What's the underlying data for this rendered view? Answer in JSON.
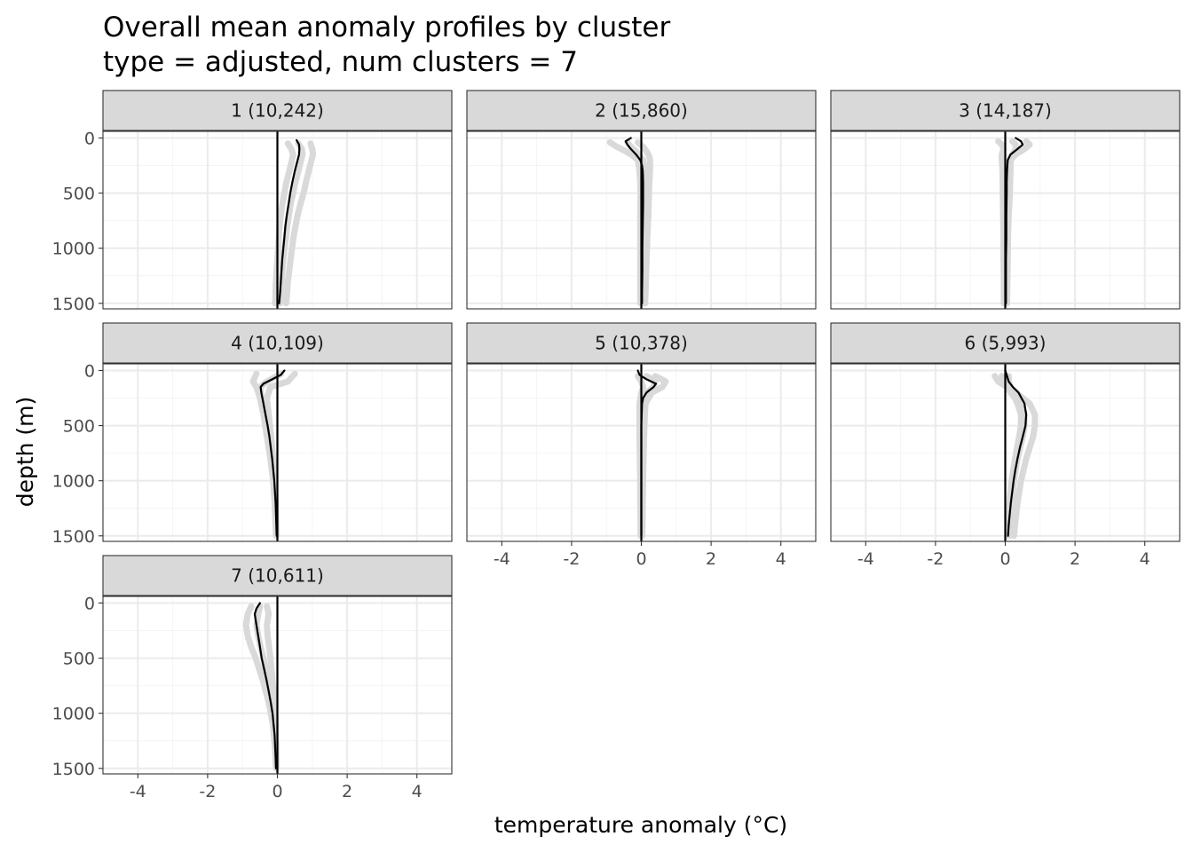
{
  "chart_data": {
    "type": "line",
    "title": "Overall mean anomaly profiles by cluster",
    "subtitle": "type = adjusted, num clusters = 7",
    "xlabel": "temperature anomaly (°C)",
    "ylabel": "depth (m)",
    "xlim": [
      -5,
      5
    ],
    "ylim": [
      1550,
      -60
    ],
    "y_reversed": true,
    "x_ticks": [
      -4,
      -2,
      0,
      2,
      4
    ],
    "y_ticks": [
      0,
      500,
      1000,
      1500
    ],
    "grid": true,
    "layout": "facet_wrap",
    "zero_line": 0,
    "panels": [
      {
        "label": "1 (10,242)",
        "series": [
          {
            "depth": [
              50,
              100,
              150,
              200,
              300,
              400,
              500,
              600,
              700,
              800,
              900,
              1000,
              1100,
              1200,
              1300,
              1400,
              1500
            ],
            "values": [
              0.6,
              0.7,
              0.72,
              0.68,
              0.6,
              0.52,
              0.45,
              0.38,
              0.33,
              0.28,
              0.25,
              0.2,
              0.17,
              0.14,
              0.12,
              0.1,
              0.08
            ]
          },
          {
            "depth": [
              50,
              100,
              150,
              200,
              300,
              400,
              500,
              600,
              700,
              800,
              900,
              1000,
              1100,
              1200,
              1300,
              1400,
              1500
            ],
            "values": [
              0.95,
              1.0,
              1.02,
              0.98,
              0.9,
              0.82,
              0.75,
              0.66,
              0.58,
              0.52,
              0.46,
              0.42,
              0.38,
              0.34,
              0.3,
              0.28,
              0.25
            ]
          },
          {
            "depth": [
              50,
              100,
              150,
              200,
              300,
              400,
              500,
              600,
              700,
              800,
              900,
              1000,
              1100,
              1200,
              1300,
              1400,
              1500
            ],
            "values": [
              0.3,
              0.4,
              0.45,
              0.42,
              0.34,
              0.26,
              0.2,
              0.14,
              0.1,
              0.06,
              0.04,
              0.02,
              0.0,
              -0.02,
              -0.04,
              -0.05,
              -0.06
            ]
          },
          {
            "depth": [
              20,
              60,
              100,
              150,
              200,
              300,
              400,
              500,
              600,
              700,
              800,
              900,
              1000,
              1100,
              1200,
              1300,
              1400,
              1500
            ],
            "values": [
              0.55,
              0.62,
              0.63,
              0.62,
              0.58,
              0.5,
              0.43,
              0.37,
              0.32,
              0.27,
              0.23,
              0.2,
              0.17,
              0.14,
              0.12,
              0.1,
              0.08,
              0.05
            ]
          }
        ]
      },
      {
        "label": "2 (15,860)",
        "series": [
          {
            "depth": [
              40,
              80,
              120,
              160,
              200,
              300,
              400,
              500,
              700,
              900,
              1100,
              1300,
              1500
            ],
            "values": [
              -0.4,
              -0.3,
              -0.15,
              -0.05,
              0.05,
              0.1,
              0.12,
              0.12,
              0.1,
              0.08,
              0.06,
              0.05,
              0.04
            ]
          },
          {
            "depth": [
              40,
              80,
              120,
              160,
              200,
              300,
              400,
              500,
              700,
              900,
              1100,
              1300,
              1500
            ],
            "values": [
              -0.9,
              -0.7,
              -0.45,
              -0.25,
              -0.1,
              -0.05,
              -0.03,
              -0.02,
              -0.03,
              -0.03,
              -0.03,
              -0.03,
              -0.03
            ]
          },
          {
            "depth": [
              40,
              80,
              120,
              160,
              200,
              300,
              400,
              500,
              700,
              900,
              1100,
              1300,
              1500
            ],
            "values": [
              -0.1,
              0.05,
              0.15,
              0.22,
              0.25,
              0.25,
              0.23,
              0.22,
              0.2,
              0.17,
              0.15,
              0.13,
              0.11
            ]
          },
          {
            "depth": [
              0,
              30,
              60,
              100,
              150,
              200,
              250,
              300,
              400,
              500,
              600,
              800,
              1000,
              1200,
              1400,
              1500
            ],
            "values": [
              -0.3,
              -0.45,
              -0.4,
              -0.3,
              -0.15,
              -0.03,
              0.02,
              0.04,
              0.05,
              0.05,
              0.05,
              0.04,
              0.03,
              0.03,
              0.02,
              0.02
            ]
          }
        ]
      },
      {
        "label": "3 (14,187)",
        "series": [
          {
            "depth": [
              30,
              60,
              100,
              150,
              200,
              300,
              500,
              700,
              900,
              1100,
              1300,
              1500
            ],
            "values": [
              0.6,
              0.7,
              0.55,
              0.3,
              0.15,
              0.12,
              0.1,
              0.08,
              0.06,
              0.05,
              0.04,
              0.03
            ]
          },
          {
            "depth": [
              30,
              60,
              100,
              150,
              200,
              300,
              500,
              700,
              900,
              1100,
              1300,
              1500
            ],
            "values": [
              -0.2,
              -0.1,
              -0.05,
              -0.1,
              -0.1,
              -0.08,
              -0.07,
              -0.06,
              -0.05,
              -0.05,
              -0.04,
              -0.04
            ]
          },
          {
            "depth": [
              30,
              60,
              100,
              150,
              200,
              300,
              500,
              700,
              900,
              1100,
              1300,
              1500
            ],
            "values": [
              0.2,
              0.3,
              0.3,
              0.2,
              0.15,
              0.15,
              0.13,
              0.1,
              0.08,
              0.07,
              0.06,
              0.05
            ]
          },
          {
            "depth": [
              0,
              30,
              60,
              100,
              150,
              200,
              300,
              400,
              500,
              700,
              900,
              1100,
              1300,
              1500
            ],
            "values": [
              0.3,
              0.45,
              0.5,
              0.35,
              0.15,
              0.07,
              0.05,
              0.04,
              0.04,
              0.03,
              0.03,
              0.02,
              0.02,
              0.02
            ]
          }
        ]
      },
      {
        "label": "4 (10,109)",
        "series": [
          {
            "depth": [
              30,
              100,
              150,
              250,
              400,
              600,
              800,
              1000,
              1200,
              1400,
              1500
            ],
            "values": [
              -0.6,
              -0.7,
              -0.6,
              -0.5,
              -0.4,
              -0.3,
              -0.2,
              -0.12,
              -0.08,
              -0.05,
              -0.04
            ]
          },
          {
            "depth": [
              30,
              100,
              150,
              250,
              400,
              600,
              800,
              1000,
              1200,
              1400,
              1500
            ],
            "values": [
              0.5,
              0.3,
              -0.2,
              -0.3,
              -0.25,
              -0.18,
              -0.12,
              -0.08,
              -0.05,
              -0.03,
              -0.02
            ]
          },
          {
            "depth": [
              30,
              100,
              150,
              250,
              400,
              600,
              800,
              1000,
              1200,
              1400,
              1500
            ],
            "values": [
              0.1,
              -0.3,
              -0.5,
              -0.45,
              -0.36,
              -0.26,
              -0.17,
              -0.1,
              -0.06,
              -0.04,
              -0.03
            ]
          },
          {
            "depth": [
              0,
              40,
              80,
              120,
              150,
              200,
              300,
              400,
              500,
              600,
              800,
              1000,
              1200,
              1400,
              1500
            ],
            "values": [
              0.2,
              0.1,
              -0.15,
              -0.4,
              -0.48,
              -0.46,
              -0.4,
              -0.34,
              -0.28,
              -0.23,
              -0.15,
              -0.09,
              -0.05,
              -0.03,
              -0.02
            ]
          }
        ]
      },
      {
        "label": "5 (10,378)",
        "series": [
          {
            "depth": [
              50,
              100,
              150,
              200,
              300,
              400,
              600,
              800,
              1000,
              1200,
              1400,
              1500
            ],
            "values": [
              0.4,
              0.7,
              0.6,
              0.3,
              0.12,
              0.1,
              0.08,
              0.06,
              0.05,
              0.04,
              0.03,
              0.03
            ]
          },
          {
            "depth": [
              50,
              100,
              150,
              200,
              300,
              400,
              600,
              800,
              1000,
              1200,
              1400,
              1500
            ],
            "values": [
              -0.1,
              0.0,
              0.05,
              0.0,
              -0.05,
              -0.05,
              -0.05,
              -0.04,
              -0.03,
              -0.03,
              -0.02,
              -0.02
            ]
          },
          {
            "depth": [
              50,
              100,
              150,
              200,
              300,
              400,
              600,
              800,
              1000,
              1200,
              1400,
              1500
            ],
            "values": [
              0.15,
              0.4,
              0.35,
              0.15,
              0.05,
              0.03,
              0.02,
              0.02,
              0.02,
              0.01,
              0.01,
              0.01
            ]
          },
          {
            "depth": [
              0,
              40,
              80,
              120,
              150,
              200,
              250,
              300,
              400,
              500,
              700,
              900,
              1100,
              1300,
              1500
            ],
            "values": [
              -0.1,
              -0.05,
              0.15,
              0.42,
              0.35,
              0.15,
              0.05,
              0.02,
              0.01,
              0.0,
              0.0,
              0.0,
              0.0,
              0.0,
              0.0
            ]
          }
        ]
      },
      {
        "label": "6 (5,993)",
        "series": [
          {
            "depth": [
              50,
              100,
              200,
              300,
              400,
              500,
              600,
              800,
              1000,
              1200,
              1400,
              1500
            ],
            "values": [
              -0.3,
              -0.2,
              0.3,
              0.7,
              0.85,
              0.85,
              0.8,
              0.6,
              0.45,
              0.35,
              0.28,
              0.25
            ]
          },
          {
            "depth": [
              50,
              100,
              200,
              300,
              400,
              500,
              600,
              800,
              1000,
              1200,
              1400,
              1500
            ],
            "values": [
              0.1,
              0.1,
              0.2,
              0.35,
              0.45,
              0.45,
              0.4,
              0.28,
              0.18,
              0.12,
              0.1,
              0.08
            ]
          },
          {
            "depth": [
              50,
              100,
              200,
              300,
              400,
              500,
              600,
              800,
              1000,
              1200,
              1400,
              1500
            ],
            "values": [
              -0.1,
              -0.05,
              0.15,
              0.4,
              0.55,
              0.55,
              0.5,
              0.35,
              0.25,
              0.18,
              0.14,
              0.12
            ]
          },
          {
            "depth": [
              0,
              50,
              100,
              150,
              200,
              300,
              400,
              500,
              600,
              700,
              800,
              900,
              1000,
              1200,
              1400,
              1500
            ],
            "values": [
              0.0,
              0.05,
              0.1,
              0.22,
              0.38,
              0.55,
              0.6,
              0.58,
              0.5,
              0.42,
              0.35,
              0.29,
              0.24,
              0.16,
              0.1,
              0.08
            ]
          }
        ]
      },
      {
        "label": "7 (10,611)",
        "series": [
          {
            "depth": [
              30,
              100,
              200,
              300,
              400,
              500,
              700,
              900,
              1100,
              1300,
              1500
            ],
            "values": [
              -0.75,
              -0.85,
              -0.9,
              -0.85,
              -0.75,
              -0.62,
              -0.42,
              -0.25,
              -0.13,
              -0.07,
              -0.04
            ]
          },
          {
            "depth": [
              30,
              100,
              200,
              300,
              400,
              500,
              700,
              900,
              1100,
              1300,
              1500
            ],
            "values": [
              -0.3,
              -0.25,
              -0.3,
              -0.28,
              -0.24,
              -0.2,
              -0.14,
              -0.08,
              -0.05,
              -0.03,
              -0.02
            ]
          },
          {
            "depth": [
              30,
              100,
              200,
              300,
              400,
              500,
              700,
              900,
              1100,
              1300,
              1500
            ],
            "values": [
              -0.5,
              -0.55,
              -0.6,
              -0.55,
              -0.48,
              -0.4,
              -0.28,
              -0.16,
              -0.09,
              -0.05,
              -0.03
            ]
          },
          {
            "depth": [
              0,
              50,
              100,
              200,
              300,
              400,
              500,
              600,
              700,
              800,
              900,
              1000,
              1200,
              1400,
              1500
            ],
            "values": [
              -0.5,
              -0.6,
              -0.65,
              -0.6,
              -0.55,
              -0.5,
              -0.45,
              -0.38,
              -0.31,
              -0.25,
              -0.19,
              -0.14,
              -0.08,
              -0.05,
              -0.04
            ]
          }
        ]
      }
    ],
    "colors": {
      "band": "#d9d9d9",
      "line": "#000000",
      "strip_fill": "#d9d9d9",
      "grid_major": "#ebebeb",
      "grid_minor": "#f4f4f4",
      "panel_border": "#333333",
      "tick_text": "#4d4d4d"
    }
  }
}
